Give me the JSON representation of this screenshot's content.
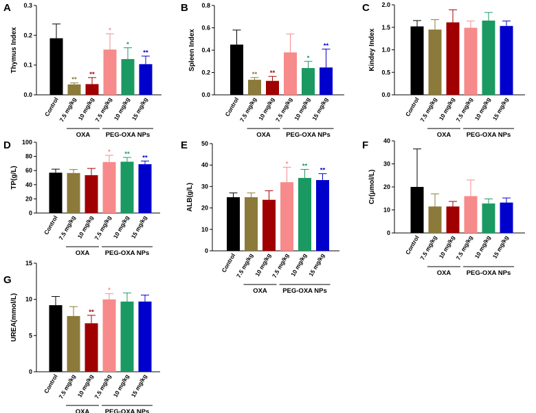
{
  "figure": {
    "categories": [
      "Control",
      "7.5 mg/kg",
      "10 mg/kg",
      "7.5 mg/kg",
      "10 mg/kg",
      "15 mg/kg"
    ],
    "colors": [
      "#000000",
      "#8c7a3a",
      "#a00000",
      "#f78a8a",
      "#1a9a62",
      "#0000cc"
    ],
    "groups": [
      {
        "label": "OXA",
        "from": 1,
        "to": 2
      },
      {
        "label": "PEG-OXA NPs",
        "from": 3,
        "to": 5
      }
    ]
  },
  "chart_data": [
    {
      "panel": "A",
      "type": "bar",
      "ylabel": "Thymus Index",
      "ylim": [
        0,
        0.3
      ],
      "yticks": [
        "0.0",
        "0.1",
        "0.2",
        "0.3"
      ],
      "values": [
        0.19,
        0.035,
        0.036,
        0.152,
        0.12,
        0.103
      ],
      "errors": [
        0.048,
        0.005,
        0.022,
        0.053,
        0.038,
        0.027
      ],
      "significance": [
        "",
        "**",
        "**",
        "*",
        "*",
        "**"
      ]
    },
    {
      "panel": "B",
      "type": "bar",
      "ylabel": "Spleen Index",
      "ylim": [
        0,
        0.8
      ],
      "yticks": [
        "0.0",
        "0.2",
        "0.4",
        "0.6",
        "0.8"
      ],
      "values": [
        0.45,
        0.135,
        0.125,
        0.38,
        0.24,
        0.245
      ],
      "errors": [
        0.13,
        0.02,
        0.04,
        0.165,
        0.06,
        0.165
      ],
      "significance": [
        "",
        "**",
        "**",
        "",
        "*",
        "**"
      ]
    },
    {
      "panel": "C",
      "type": "bar",
      "ylabel": "Kindey Index",
      "ylim": [
        0,
        2.0
      ],
      "yticks": [
        "0.0",
        "0.5",
        "1.0",
        "1.5",
        "2.0"
      ],
      "values": [
        1.52,
        1.45,
        1.61,
        1.49,
        1.65,
        1.53
      ],
      "errors": [
        0.13,
        0.22,
        0.28,
        0.15,
        0.18,
        0.11
      ],
      "significance": [
        "",
        "",
        "",
        "",
        "",
        ""
      ]
    },
    {
      "panel": "D",
      "type": "bar",
      "ylabel": "TP(g/L)",
      "ylim": [
        0,
        100
      ],
      "yticks": [
        "0",
        "20",
        "40",
        "60",
        "80",
        "100"
      ],
      "values": [
        57,
        56.5,
        53.5,
        72,
        72.5,
        69
      ],
      "errors": [
        5,
        5,
        9.5,
        9.5,
        6,
        4.5
      ],
      "significance": [
        "",
        "",
        "",
        "*",
        "**",
        "**"
      ]
    },
    {
      "panel": "E",
      "type": "bar",
      "ylabel": "ALB(g/L)",
      "ylim": [
        0,
        50
      ],
      "yticks": [
        "0",
        "10",
        "20",
        "30",
        "40",
        "50"
      ],
      "values": [
        25,
        25,
        23.8,
        32,
        34,
        33
      ],
      "errors": [
        2,
        2,
        4.2,
        7,
        4,
        3
      ],
      "significance": [
        "",
        "",
        "",
        "*",
        "**",
        "**"
      ]
    },
    {
      "panel": "F",
      "type": "bar",
      "ylabel": "Cr(μmol/L)",
      "ylim": [
        0,
        40
      ],
      "yticks": [
        "0",
        "10",
        "20",
        "30",
        "40"
      ],
      "values": [
        20,
        11.5,
        11.5,
        16,
        12.8,
        13.2
      ],
      "errors": [
        16.5,
        5.5,
        2.2,
        7,
        2,
        2
      ],
      "significance": [
        "",
        "",
        "",
        "",
        "",
        ""
      ]
    },
    {
      "panel": "G",
      "type": "bar",
      "ylabel": "UREA(mmol/L)",
      "ylim": [
        0,
        15
      ],
      "yticks": [
        "0",
        "5",
        "10",
        "15"
      ],
      "values": [
        9.2,
        7.7,
        6.7,
        10,
        9.7,
        9.7
      ],
      "errors": [
        1.2,
        1.3,
        1.1,
        0.8,
        1.2,
        0.9
      ],
      "significance": [
        "",
        "",
        "**",
        "*",
        "",
        ""
      ]
    }
  ]
}
